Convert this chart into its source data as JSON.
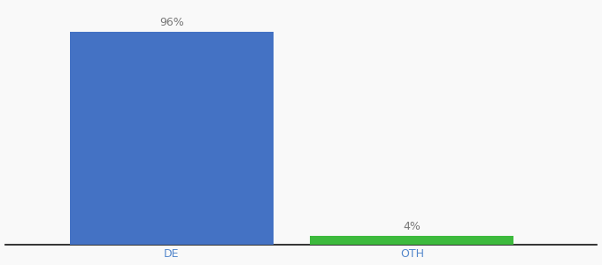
{
  "categories": [
    "DE",
    "OTH"
  ],
  "values": [
    96,
    4
  ],
  "bar_colors": [
    "#4472c4",
    "#3dba3d"
  ],
  "bar_labels": [
    "96%",
    "4%"
  ],
  "ylim": [
    0,
    108
  ],
  "figsize": [
    6.8,
    3.0
  ],
  "dpi": 100,
  "background_color": "#f9f9f9",
  "label_fontsize": 9,
  "tick_fontsize": 9,
  "bar_width": 0.55,
  "x_positions": [
    0.35,
    1.0
  ],
  "xlim": [
    -0.1,
    1.5
  ]
}
